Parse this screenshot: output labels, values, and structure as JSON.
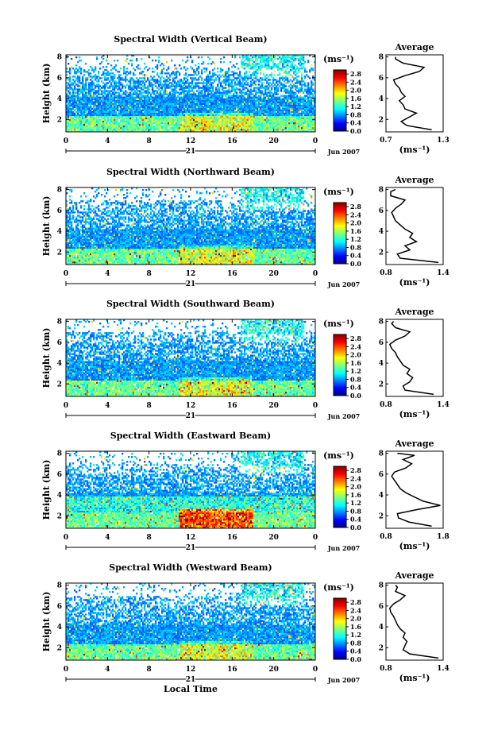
{
  "chart_data": [
    {
      "type": "heatmap",
      "title": "Spectral Width (Vertical Beam)",
      "ylabel": "Height (km)",
      "xlabel": "",
      "x_ticks": [
        "0",
        "4",
        "8",
        "12",
        "16",
        "20",
        "0"
      ],
      "y_ticks": [
        "2",
        "4",
        "6",
        "8"
      ],
      "xlim": [
        0,
        24
      ],
      "ylim": [
        0.8,
        8.2
      ],
      "date_label": "Jun 2007",
      "day_label": "21",
      "colorbar": {
        "unit": "(ms⁻¹)",
        "ticks": [
          "0.0",
          "0.4",
          "0.8",
          "1.2",
          "1.6",
          "2.0",
          "2.4",
          "2.8"
        ],
        "range": [
          0,
          3
        ]
      },
      "profile": {
        "title": "Average",
        "unit": "(ms⁻¹)",
        "x_ticks": [
          "0.7",
          "1.3"
        ],
        "xlim": [
          0.7,
          1.3
        ],
        "y_ticks": [
          "2",
          "4",
          "6",
          "8"
        ],
        "ylim": [
          0.8,
          8.2
        ],
        "heights": [
          1.0,
          1.4,
          1.8,
          2.2,
          2.6,
          3.0,
          3.4,
          3.8,
          4.2,
          4.6,
          5.0,
          5.4,
          5.8,
          6.2,
          6.6,
          7.0,
          7.4,
          7.8,
          8.0
        ],
        "values": [
          1.18,
          0.92,
          0.86,
          0.94,
          1.02,
          0.9,
          0.88,
          0.84,
          0.9,
          0.86,
          0.84,
          0.8,
          0.78,
          0.9,
          1.05,
          1.1,
          0.88,
          0.8,
          0.8
        ]
      }
    },
    {
      "type": "heatmap",
      "title": "Spectral Width (Northward Beam)",
      "ylabel": "Height (km)",
      "xlabel": "",
      "x_ticks": [
        "0",
        "4",
        "8",
        "12",
        "16",
        "20",
        "0"
      ],
      "y_ticks": [
        "2",
        "4",
        "6",
        "8"
      ],
      "xlim": [
        0,
        24
      ],
      "ylim": [
        0.8,
        8.2
      ],
      "date_label": "Jun 2007",
      "day_label": "21",
      "colorbar": {
        "unit": "(ms⁻¹)",
        "ticks": [
          "0.0",
          "0.4",
          "0.8",
          "1.2",
          "1.6",
          "2.0",
          "2.4",
          "2.8"
        ],
        "range": [
          0,
          3
        ]
      },
      "profile": {
        "title": "Average",
        "unit": "(ms⁻¹)",
        "x_ticks": [
          "0.8",
          "1.4"
        ],
        "xlim": [
          0.8,
          1.4
        ],
        "y_ticks": [
          "2",
          "4",
          "6",
          "8"
        ],
        "ylim": [
          0.8,
          8.2
        ],
        "heights": [
          1.0,
          1.4,
          1.8,
          2.2,
          2.6,
          3.0,
          3.4,
          3.8,
          4.2,
          4.6,
          5.0,
          5.4,
          5.8,
          6.2,
          6.6,
          7.0,
          7.4,
          7.8,
          8.0
        ],
        "values": [
          1.35,
          0.95,
          0.92,
          1.05,
          1.0,
          1.12,
          1.05,
          1.08,
          1.0,
          0.95,
          0.9,
          0.88,
          0.86,
          0.9,
          0.96,
          1.0,
          0.85,
          0.85,
          0.9
        ]
      }
    },
    {
      "type": "heatmap",
      "title": "Spectral Width (Southward Beam)",
      "ylabel": "Height (km)",
      "xlabel": "",
      "x_ticks": [
        "0",
        "4",
        "8",
        "12",
        "16",
        "20",
        "0"
      ],
      "y_ticks": [
        "2",
        "4",
        "6",
        "8"
      ],
      "xlim": [
        0,
        24
      ],
      "ylim": [
        0.8,
        8.2
      ],
      "date_label": "Jun 2007",
      "day_label": "21",
      "colorbar": {
        "unit": "(ms⁻¹)",
        "ticks": [
          "0.0",
          "0.4",
          "0.8",
          "1.2",
          "1.6",
          "2.0",
          "2.4",
          "2.8"
        ],
        "range": [
          0,
          3
        ]
      },
      "profile": {
        "title": "Average",
        "unit": "(ms⁻¹)",
        "x_ticks": [
          "0.8",
          "1.4"
        ],
        "xlim": [
          0.8,
          1.4
        ],
        "y_ticks": [
          "2",
          "4",
          "6",
          "8"
        ],
        "ylim": [
          0.8,
          8.2
        ],
        "heights": [
          1.0,
          1.4,
          1.8,
          2.2,
          2.6,
          3.0,
          3.4,
          3.8,
          4.2,
          4.6,
          5.0,
          5.4,
          5.8,
          6.2,
          6.6,
          7.0,
          7.4,
          7.8,
          8.0
        ],
        "values": [
          1.3,
          1.0,
          0.98,
          1.05,
          1.08,
          1.02,
          1.05,
          0.98,
          0.95,
          0.92,
          0.9,
          0.86,
          0.84,
          0.9,
          1.0,
          1.05,
          0.9,
          0.86,
          0.88
        ]
      }
    },
    {
      "type": "heatmap",
      "title": "Spectral Width (Eastward Beam)",
      "ylabel": "Height (km)",
      "xlabel": "",
      "x_ticks": [
        "0",
        "4",
        "8",
        "12",
        "16",
        "20",
        "0"
      ],
      "y_ticks": [
        "2",
        "4",
        "6",
        "8"
      ],
      "xlim": [
        0,
        24
      ],
      "ylim": [
        0.8,
        8.2
      ],
      "date_label": "Jun 2007",
      "day_label": "21",
      "colorbar": {
        "unit": "(ms⁻¹)",
        "ticks": [
          "0.0",
          "0.4",
          "0.8",
          "1.2",
          "1.6",
          "2.0",
          "2.4",
          "2.8"
        ],
        "range": [
          0,
          3
        ]
      },
      "profile": {
        "title": "Average",
        "unit": "(ms⁻¹)",
        "x_ticks": [
          "0.8",
          "1.8"
        ],
        "xlim": [
          0.8,
          1.8
        ],
        "y_ticks": [
          "2",
          "4",
          "6",
          "8"
        ],
        "ylim": [
          0.8,
          8.2
        ],
        "heights": [
          1.0,
          1.4,
          1.8,
          2.2,
          2.6,
          3.0,
          3.4,
          3.8,
          4.2,
          4.6,
          5.0,
          5.4,
          5.8,
          6.2,
          6.6,
          7.0,
          7.4,
          7.8,
          8.0
        ],
        "values": [
          1.6,
          1.2,
          1.02,
          1.0,
          1.35,
          1.75,
          1.45,
          1.3,
          1.15,
          1.05,
          1.0,
          0.95,
          0.9,
          0.95,
          1.15,
          1.25,
          1.1,
          1.3,
          1.0
        ]
      }
    },
    {
      "type": "heatmap",
      "title": "Spectral Width (Westward Beam)",
      "ylabel": "Height (km)",
      "xlabel": "Local Time",
      "x_ticks": [
        "0",
        "4",
        "8",
        "12",
        "16",
        "20",
        "0"
      ],
      "y_ticks": [
        "2",
        "4",
        "6",
        "8"
      ],
      "xlim": [
        0,
        24
      ],
      "ylim": [
        0.8,
        8.2
      ],
      "date_label": "Jun 2007",
      "day_label": "21",
      "colorbar": {
        "unit": "(ms⁻¹)",
        "ticks": [
          "0.0",
          "0.4",
          "0.8",
          "1.2",
          "1.6",
          "2.0",
          "2.4",
          "2.8"
        ],
        "range": [
          0,
          3
        ]
      },
      "profile": {
        "title": "Average",
        "unit": "(ms⁻¹)",
        "x_ticks": [
          "0.8",
          "1.4"
        ],
        "xlim": [
          0.8,
          1.4
        ],
        "y_ticks": [
          "2",
          "4",
          "6",
          "8"
        ],
        "ylim": [
          0.8,
          8.2
        ],
        "heights": [
          1.0,
          1.4,
          1.8,
          2.2,
          2.6,
          3.0,
          3.4,
          3.8,
          4.2,
          4.6,
          5.0,
          5.4,
          5.8,
          6.2,
          6.6,
          7.0,
          7.4,
          7.8,
          8.0
        ],
        "values": [
          1.35,
          1.05,
          0.98,
          1.0,
          1.02,
          0.98,
          1.0,
          0.95,
          0.92,
          0.9,
          0.88,
          0.85,
          0.84,
          0.88,
          0.95,
          1.0,
          0.9,
          0.92,
          0.9
        ]
      }
    }
  ]
}
